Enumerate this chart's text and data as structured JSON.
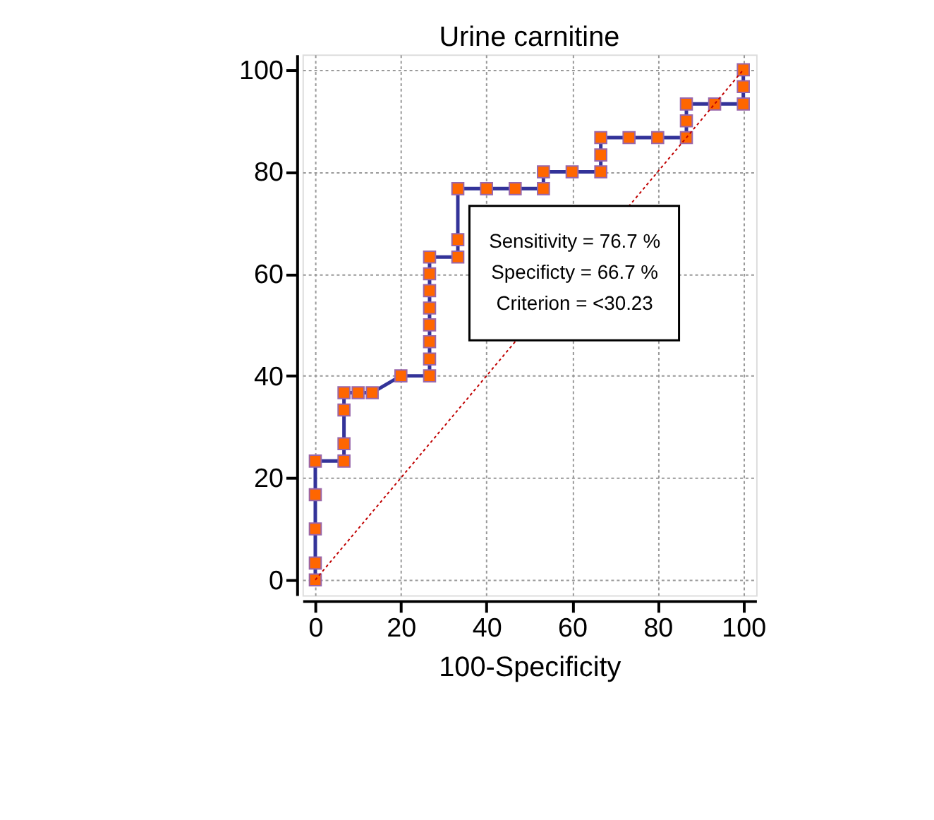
{
  "chart_data": {
    "type": "line",
    "title": "Urine carnitine",
    "xlabel": "100-Specificity",
    "xlim": [
      -3,
      103
    ],
    "ylim": [
      -3,
      103
    ],
    "xticks": [
      0,
      20,
      40,
      60,
      80,
      100
    ],
    "yticks": [
      0,
      20,
      40,
      60,
      80,
      100
    ],
    "grid": true,
    "marker": "square",
    "line_style": "solid",
    "series": [
      {
        "color": "#333399",
        "x": [
          0,
          0,
          0,
          0,
          0,
          6.7,
          6.7,
          6.7,
          6.7,
          10,
          13.3,
          20,
          26.7,
          26.7,
          26.7,
          26.7,
          26.7,
          26.7,
          26.7,
          26.7,
          33.3,
          33.3,
          33.3,
          40,
          46.7,
          53.3,
          53.3,
          60,
          66.7,
          66.7,
          66.7,
          73.3,
          80,
          86.7,
          86.7,
          86.7,
          93.3,
          100,
          100,
          100
        ],
        "values": [
          0,
          3.3,
          10,
          16.7,
          23.3,
          23.3,
          26.7,
          33.3,
          36.7,
          36.7,
          36.7,
          40,
          40,
          43.3,
          46.7,
          50,
          53.3,
          56.7,
          60,
          63.3,
          63.3,
          66.7,
          76.7,
          76.7,
          76.7,
          76.7,
          80,
          80,
          80,
          83.3,
          86.7,
          86.7,
          86.7,
          86.7,
          90,
          93.3,
          93.3,
          93.3,
          96.7,
          100
        ]
      },
      {
        "type": "line",
        "color": "#c00000",
        "line_style": "dotted",
        "marker": "none",
        "x": [
          0,
          100
        ],
        "values": [
          0,
          100
        ]
      }
    ],
    "annotations": [
      "Sensitivity = 76.7 %",
      "Specificty = 66.7 %",
      "Criterion = <30.23"
    ]
  }
}
